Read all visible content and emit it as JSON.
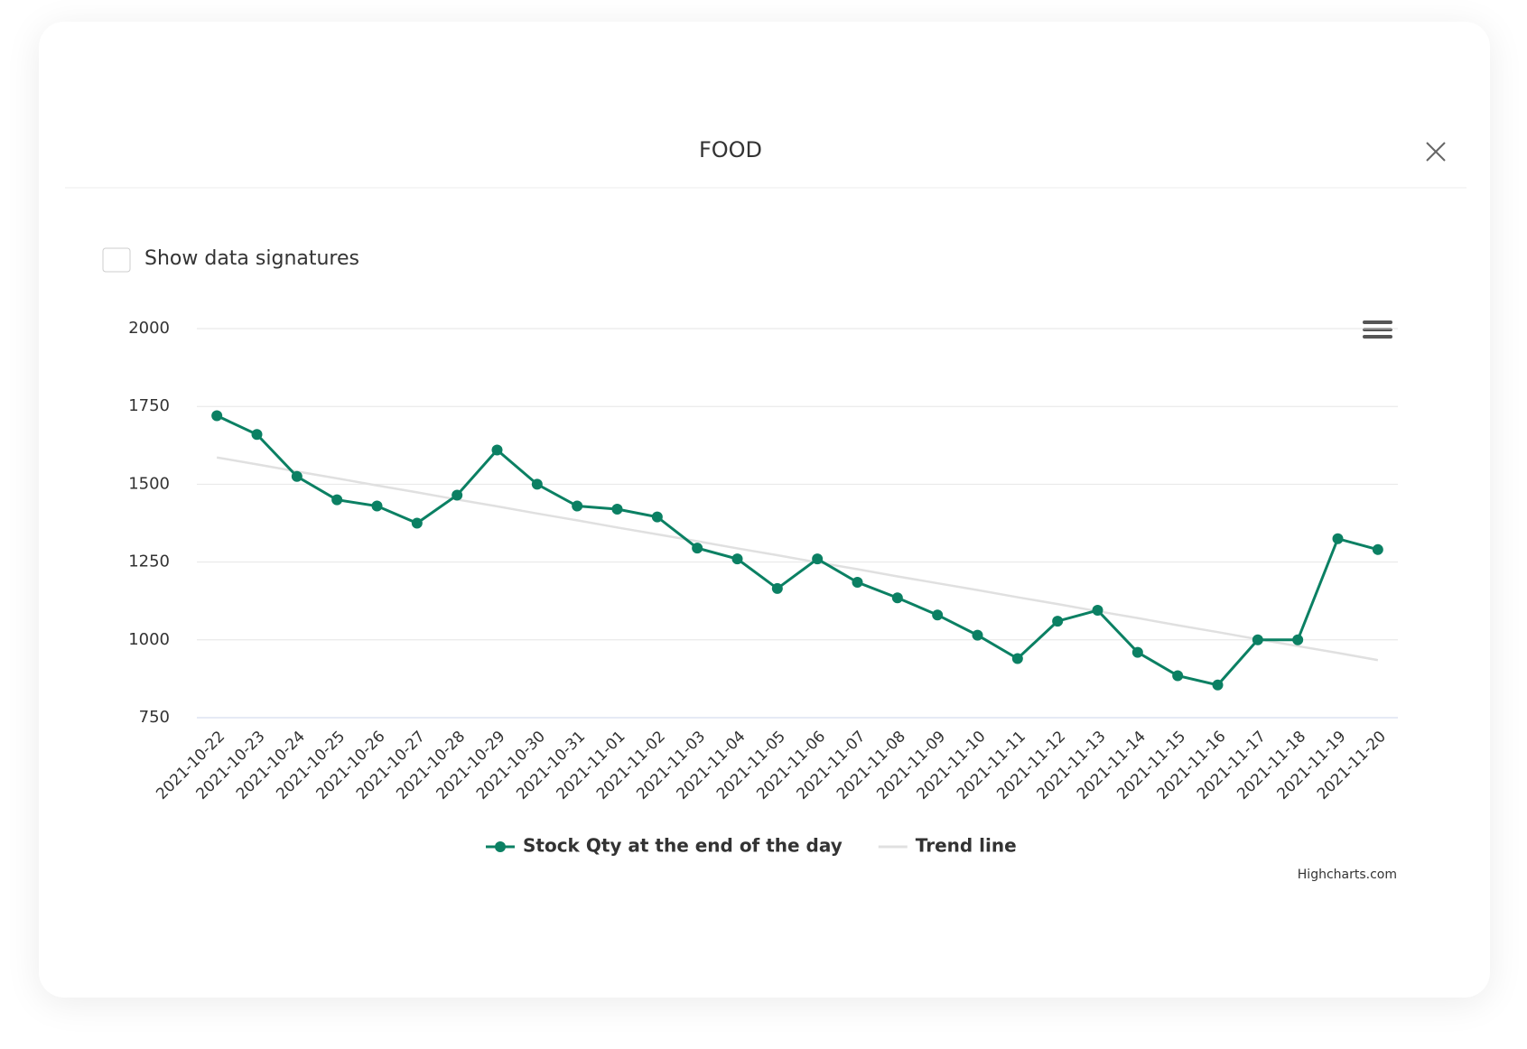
{
  "title": "FOOD",
  "checkbox_label": "Show data signatures",
  "credits": "Highcharts.com",
  "chart_data": {
    "type": "line",
    "categories": [
      "2021-10-22",
      "2021-10-23",
      "2021-10-24",
      "2021-10-25",
      "2021-10-26",
      "2021-10-27",
      "2021-10-28",
      "2021-10-29",
      "2021-10-30",
      "2021-10-31",
      "2021-11-01",
      "2021-11-02",
      "2021-11-03",
      "2021-11-04",
      "2021-11-05",
      "2021-11-06",
      "2021-11-07",
      "2021-11-08",
      "2021-11-09",
      "2021-11-10",
      "2021-11-11",
      "2021-11-12",
      "2021-11-13",
      "2021-11-14",
      "2021-11-15",
      "2021-11-16",
      "2021-11-17",
      "2021-11-18",
      "2021-11-19",
      "2021-11-20"
    ],
    "series": [
      {
        "name": "Stock Qty at the end of the day",
        "color": "#0b8063",
        "markers": true,
        "values": [
          1720,
          1660,
          1525,
          1450,
          1430,
          1375,
          1465,
          1610,
          1500,
          1430,
          1420,
          1395,
          1295,
          1260,
          1165,
          1260,
          1185,
          1135,
          1080,
          1015,
          940,
          1060,
          1095,
          960,
          885,
          855,
          1000,
          1000,
          1325,
          1290
        ]
      },
      {
        "name": "Trend line",
        "color": "#e0e0e0",
        "markers": false,
        "values": [
          1586,
          1564,
          1541,
          1519,
          1496,
          1474,
          1451,
          1429,
          1406,
          1384,
          1361,
          1339,
          1317,
          1294,
          1272,
          1249,
          1227,
          1204,
          1182,
          1160,
          1137,
          1115,
          1092,
          1070,
          1047,
          1025,
          1002,
          980,
          958,
          935
        ]
      }
    ],
    "ylim": [
      750,
      2000
    ],
    "yticks": [
      750,
      1000,
      1250,
      1500,
      1750,
      2000
    ],
    "grid": true
  }
}
